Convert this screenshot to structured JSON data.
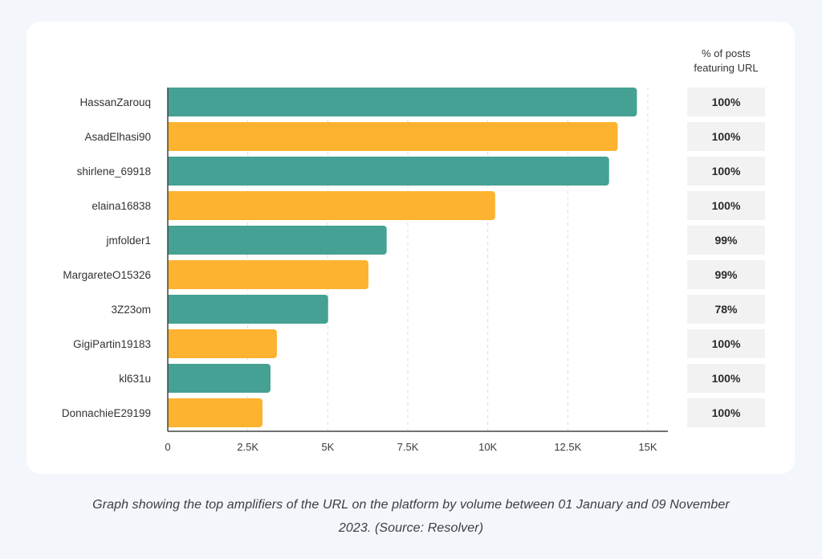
{
  "chart_data": {
    "type": "bar",
    "orientation": "horizontal",
    "categories": [
      "HassanZarouq",
      "AsadElhasi90",
      "shirlene_69918",
      "elaina16838",
      "jmfolder1",
      "MargareteO15326",
      "3Z23om",
      "GigiPartin19183",
      "kl631u",
      "DonnachieE29199"
    ],
    "values": [
      14660,
      14060,
      13790,
      10230,
      6840,
      6270,
      5010,
      3410,
      3210,
      2960
    ],
    "bar_colors": [
      "#45a193",
      "#fdb32f",
      "#45a193",
      "#fdb32f",
      "#45a193",
      "#fdb32f",
      "#45a193",
      "#fdb32f",
      "#45a193",
      "#fdb32f"
    ],
    "xlim": [
      0,
      15600
    ],
    "x_ticks": [
      0,
      2500,
      5000,
      7500,
      10000,
      12500,
      15000
    ],
    "x_tick_labels": [
      "0",
      "2.5K",
      "5K",
      "7.5K",
      "10K",
      "12.5K",
      "15K"
    ],
    "grid": "vertical dashed",
    "side_table": {
      "header_line1": "% of posts",
      "header_line2": "featuring URL",
      "values": [
        "100%",
        "100%",
        "100%",
        "100%",
        "99%",
        "99%",
        "78%",
        "100%",
        "100%",
        "100%"
      ]
    }
  },
  "caption": "Graph showing the top amplifiers of the URL on the platform by volume between 01 January and 09 November 2023. (Source: Resolver)"
}
